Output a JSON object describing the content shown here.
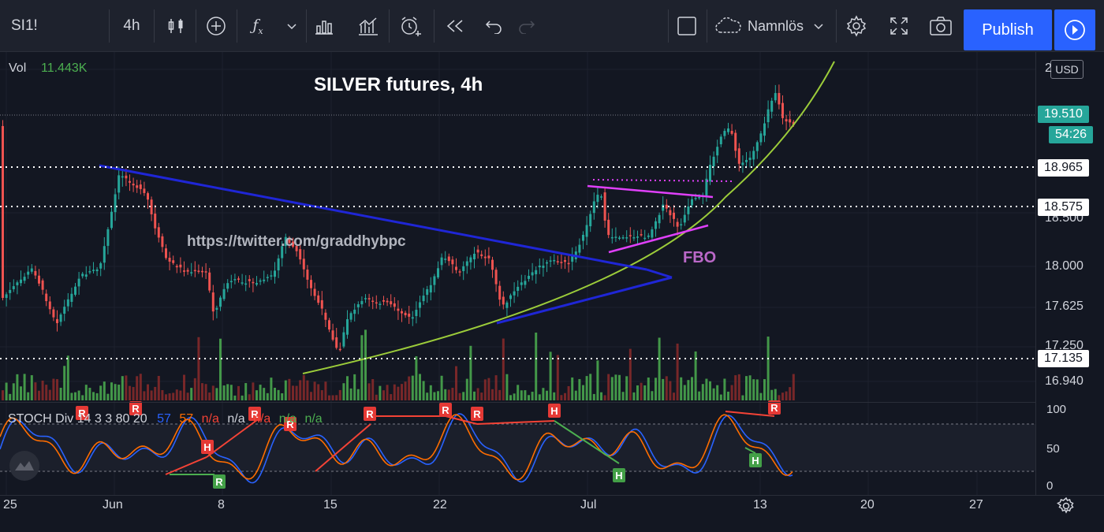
{
  "toolbar": {
    "symbol": "SI1!",
    "interval": "4h",
    "layout_name": "Namnlös",
    "publish_label": "Publish"
  },
  "chart": {
    "title": "SILVER futures, 4h",
    "volume_label": "Vol",
    "volume_value": "11.443K",
    "watermark_url": "https://twitter.com/graddhybpc",
    "pattern_label": "FBO",
    "currency": "USD"
  },
  "price_axis": {
    "ticks": [
      "2",
      "18.500",
      "18.000",
      "17.625",
      "17.250",
      "16.940"
    ],
    "last_price": "19.510",
    "countdown": "54:26",
    "level_1": "18.965",
    "level_2": "18.575",
    "level_3": "17.135"
  },
  "stoch": {
    "name": "STOCH Div",
    "params": "14 3 3 80 20",
    "k_value": "57",
    "d_value": "57",
    "na_1": "n/a",
    "na_2": "n/a",
    "na_3": "n/a",
    "na_4": "n/a",
    "na_5": "n/a",
    "axis": [
      "100",
      "50",
      "0"
    ],
    "markers": [
      {
        "t": "R",
        "color": "red"
      },
      {
        "t": "R",
        "color": "red"
      },
      {
        "t": "H",
        "color": "red"
      },
      {
        "t": "R",
        "color": "green"
      },
      {
        "t": "R",
        "color": "red"
      },
      {
        "t": "R",
        "color": "red"
      },
      {
        "t": "R",
        "color": "red"
      },
      {
        "t": "R",
        "color": "red"
      },
      {
        "t": "R",
        "color": "red"
      },
      {
        "t": "H",
        "color": "red"
      },
      {
        "t": "H",
        "color": "green"
      },
      {
        "t": "R",
        "color": "red"
      },
      {
        "t": "H",
        "color": "green"
      }
    ]
  },
  "time_axis": {
    "ticks": [
      "25",
      "Jun",
      "8",
      "15",
      "22",
      "Jul",
      "13",
      "20",
      "27"
    ]
  },
  "colors": {
    "bull": "#26a69a",
    "bear": "#ef5350",
    "trend_blue": "#1f26d6",
    "parabola": "#9ccc3a",
    "magenta": "#e040fb",
    "stoch_k": "#2962ff",
    "stoch_d": "#ff6d00"
  },
  "icons": [
    "candles-icon",
    "add-icon",
    "indicators-icon",
    "chevron-down-icon",
    "bar-chart-icon",
    "templates-icon",
    "alert-icon",
    "replay-icon",
    "undo-icon",
    "redo-icon",
    "square-icon",
    "cloud-icon",
    "gear-icon",
    "fullscreen-icon",
    "camera-icon",
    "play-icon"
  ]
}
